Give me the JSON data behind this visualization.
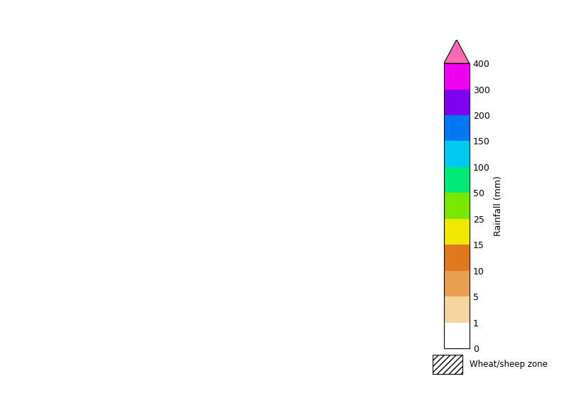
{
  "title": "",
  "colorbar_label": "Rainfall (mm)",
  "colorbar_ticks": [
    0,
    1,
    5,
    10,
    15,
    25,
    50,
    100,
    150,
    200,
    300,
    400
  ],
  "colorbar_colors": [
    "#ffffff",
    "#f5d5a0",
    "#e8a050",
    "#e07820",
    "#f0e800",
    "#78e800",
    "#00e878",
    "#00c8f0",
    "#0078f0",
    "#8000f0",
    "#f000f0",
    "#ff69b4"
  ],
  "legend_label": "Wheat/sheep zone",
  "background_color": "#ffffff",
  "figsize": [
    8.01,
    5.57
  ],
  "dpi": 100
}
